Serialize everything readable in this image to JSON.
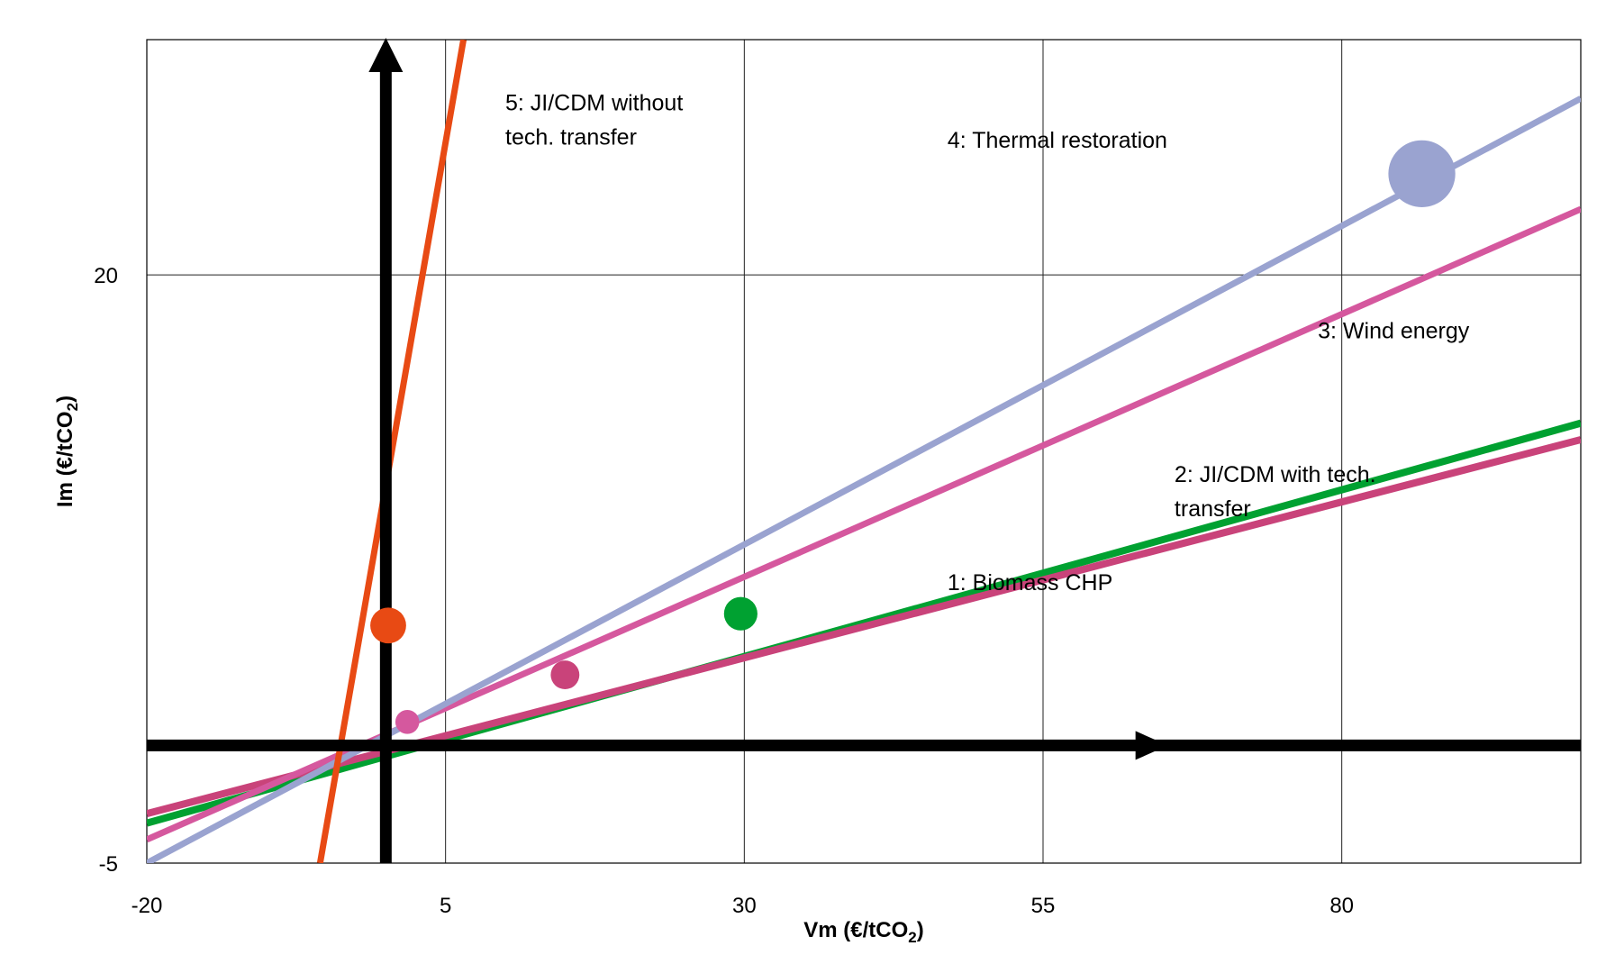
{
  "chart_data": {
    "type": "scatter",
    "xlabel": "Vm (€/tCO",
    "xlabel_sub": "2",
    "xlabel_end": ")",
    "ylabel": "Im (€/tCO",
    "ylabel_sub": "2",
    "ylabel_end": ")",
    "xlim": [
      -20,
      100
    ],
    "ylim": [
      -5,
      30
    ],
    "x_ticks": [
      {
        "value": -20,
        "label": "-20"
      },
      {
        "value": 5,
        "label": "5"
      },
      {
        "value": 30,
        "label": "30"
      },
      {
        "value": 55,
        "label": "55"
      },
      {
        "value": 80,
        "label": "80"
      }
    ],
    "y_ticks": [
      {
        "value": -5,
        "label": "-5"
      },
      {
        "value": 20,
        "label": "20"
      }
    ],
    "x_gridlines": [
      5,
      30,
      55,
      80
    ],
    "y_gridlines": [
      20,
      0
    ],
    "grid": true,
    "series": [
      {
        "id": "s1",
        "label": "1: Biomass CHP",
        "color": "#00a131",
        "width": 8,
        "line": [
          [
            -20,
            -3.3
          ],
          [
            100,
            13.7
          ]
        ],
        "point": {
          "x": 29.7,
          "y": 5.6,
          "r": 1.4
        },
        "annotation": {
          "lines": [
            "1: Biomass CHP"
          ],
          "x": 47,
          "y": 6.6
        }
      },
      {
        "id": "s2",
        "label": "2: JI/CDM with tech. transfer",
        "color": "#c9437a",
        "width": 8,
        "line": [
          [
            -20,
            -2.9
          ],
          [
            100,
            13.0
          ]
        ],
        "point": {
          "x": 15.0,
          "y": 3.0,
          "r": 1.2
        },
        "annotation": {
          "lines": [
            "2: JI/CDM with tech.",
            "transfer"
          ],
          "x": 66,
          "y": 11.2
        }
      },
      {
        "id": "s3",
        "label": "3: Wind energy",
        "color": "#d5589e",
        "width": 7,
        "line": [
          [
            -20,
            -4.0
          ],
          [
            100,
            22.8
          ]
        ],
        "point": {
          "x": 1.8,
          "y": 1.0,
          "r": 1.0
        },
        "annotation": {
          "lines": [
            "3: Wind energy"
          ],
          "x": 78,
          "y": 17.3
        }
      },
      {
        "id": "s4",
        "label": "4: Thermal restoration",
        "color": "#9aa3d0",
        "width": 7,
        "line": [
          [
            -20,
            -5.0
          ],
          [
            100,
            27.5
          ]
        ],
        "point": {
          "x": 86.7,
          "y": 24.3,
          "r": 2.8
        },
        "annotation": {
          "lines": [
            "4: Thermal restoration"
          ],
          "x": 47,
          "y": 25.4
        }
      },
      {
        "id": "s5",
        "label": "5: JI/CDM without tech. transfer",
        "color": "#e84a14",
        "width": 7,
        "line": [
          [
            -5.5,
            -5.0
          ],
          [
            6.5,
            30.0
          ]
        ],
        "point": {
          "x": 0.2,
          "y": 5.1,
          "r": 1.5
        },
        "annotation": {
          "lines": [
            "5: JI/CDM without",
            "tech. transfer"
          ],
          "x": 10,
          "y": 27.0
        }
      }
    ],
    "axes_arrows": {
      "origin": [
        0,
        0
      ],
      "x_end": 65,
      "y_end": 30,
      "color": "#000000"
    }
  }
}
